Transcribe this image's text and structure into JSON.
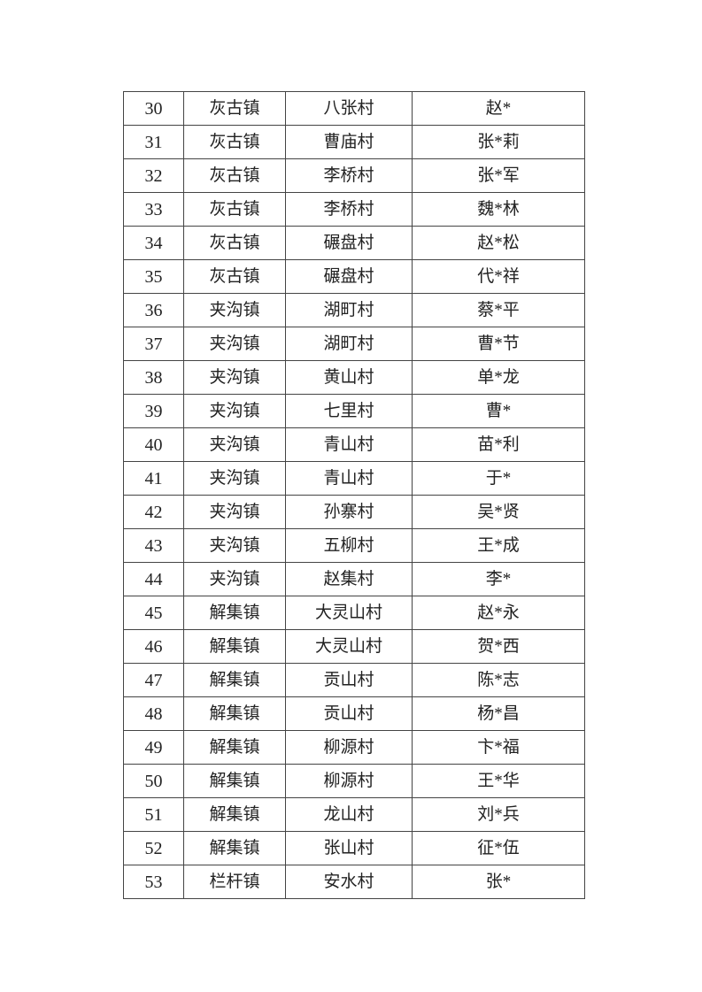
{
  "table": {
    "rows": [
      [
        "30",
        "灰古镇",
        "八张村",
        "赵*"
      ],
      [
        "31",
        "灰古镇",
        "曹庙村",
        "张*莉"
      ],
      [
        "32",
        "灰古镇",
        "李桥村",
        "张*军"
      ],
      [
        "33",
        "灰古镇",
        "李桥村",
        "魏*林"
      ],
      [
        "34",
        "灰古镇",
        "碾盘村",
        "赵*松"
      ],
      [
        "35",
        "灰古镇",
        "碾盘村",
        "代*祥"
      ],
      [
        "36",
        "夹沟镇",
        "湖町村",
        "蔡*平"
      ],
      [
        "37",
        "夹沟镇",
        "湖町村",
        "曹*节"
      ],
      [
        "38",
        "夹沟镇",
        "黄山村",
        "单*龙"
      ],
      [
        "39",
        "夹沟镇",
        "七里村",
        "曹*"
      ],
      [
        "40",
        "夹沟镇",
        "青山村",
        "苗*利"
      ],
      [
        "41",
        "夹沟镇",
        "青山村",
        "于*"
      ],
      [
        "42",
        "夹沟镇",
        "孙寨村",
        "吴*贤"
      ],
      [
        "43",
        "夹沟镇",
        "五柳村",
        "王*成"
      ],
      [
        "44",
        "夹沟镇",
        "赵集村",
        "李*"
      ],
      [
        "45",
        "解集镇",
        "大灵山村",
        "赵*永"
      ],
      [
        "46",
        "解集镇",
        "大灵山村",
        "贺*西"
      ],
      [
        "47",
        "解集镇",
        "贡山村",
        "陈*志"
      ],
      [
        "48",
        "解集镇",
        "贡山村",
        "杨*昌"
      ],
      [
        "49",
        "解集镇",
        "柳源村",
        "卞*福"
      ],
      [
        "50",
        "解集镇",
        "柳源村",
        "王*华"
      ],
      [
        "51",
        "解集镇",
        "龙山村",
        "刘*兵"
      ],
      [
        "52",
        "解集镇",
        "张山村",
        "征*伍"
      ],
      [
        "53",
        "栏杆镇",
        "安水村",
        "张*"
      ]
    ]
  }
}
